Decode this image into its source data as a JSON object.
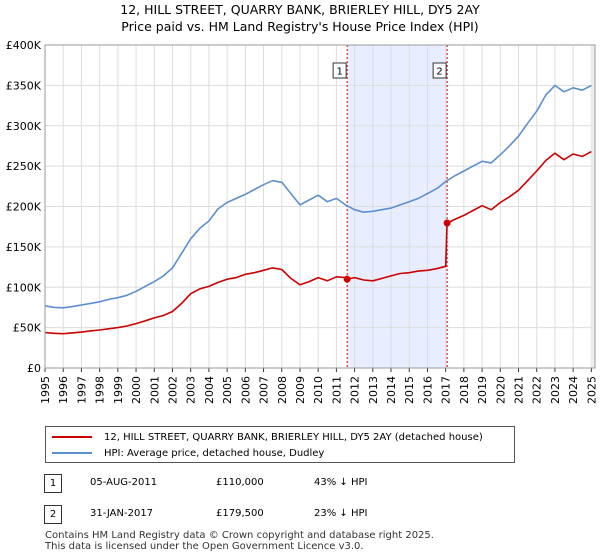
{
  "title_line1": "12, HILL STREET, QUARRY BANK, BRIERLEY HILL, DY5 2AY",
  "title_line2": "Price paid vs. HM Land Registry's House Price Index (HPI)",
  "colors": {
    "property": "#cc0000",
    "hpi": "#5b8fd0",
    "shade": "#e8eeff",
    "marker_line": "#cc0000"
  },
  "chart_data": {
    "type": "line",
    "xlim": [
      1995.0,
      2025.2
    ],
    "ylim": [
      0,
      400000
    ],
    "y_ticks": [
      0,
      50000,
      100000,
      150000,
      200000,
      250000,
      300000,
      350000,
      400000
    ],
    "y_tick_labels": [
      "£0",
      "£50K",
      "£100K",
      "£150K",
      "£200K",
      "£250K",
      "£300K",
      "£350K",
      "£400K"
    ],
    "x_ticks": [
      1995,
      1996,
      1997,
      1998,
      1999,
      2000,
      2001,
      2002,
      2003,
      2004,
      2005,
      2006,
      2007,
      2008,
      2009,
      2010,
      2011,
      2012,
      2013,
      2014,
      2015,
      2016,
      2017,
      2018,
      2019,
      2020,
      2021,
      2022,
      2023,
      2024,
      2025
    ],
    "x_tick_labels": [
      "1995",
      "1996",
      "1997",
      "1998",
      "1999",
      "2000",
      "2001",
      "2002",
      "2003",
      "2004",
      "2005",
      "2006",
      "2007",
      "2008",
      "2009",
      "2010",
      "2011",
      "2012",
      "2013",
      "2014",
      "2015",
      "2016",
      "2017",
      "2018",
      "2019",
      "2020",
      "2021",
      "2022",
      "2023",
      "2024",
      "2025"
    ],
    "shaded_region": [
      2011.59,
      2017.08
    ],
    "sale_markers": [
      {
        "label": "1",
        "x": 2011.59,
        "y": 110000
      },
      {
        "label": "2",
        "x": 2017.08,
        "y": 179500
      }
    ],
    "series": [
      {
        "name": "12, HILL STREET, QUARRY BANK, BRIERLEY HILL, DY5 2AY (detached house)",
        "x": [
          1995.0,
          1995.5,
          1996.0,
          1996.5,
          1997.0,
          1997.5,
          1998.0,
          1998.5,
          1999.0,
          1999.5,
          2000.0,
          2000.5,
          2001.0,
          2001.5,
          2002.0,
          2002.5,
          2003.0,
          2003.5,
          2004.0,
          2004.5,
          2005.0,
          2005.5,
          2006.0,
          2006.5,
          2007.0,
          2007.5,
          2008.0,
          2008.5,
          2009.0,
          2009.5,
          2010.0,
          2010.5,
          2011.0,
          2011.5,
          2011.59,
          2012.0,
          2012.5,
          2013.0,
          2013.5,
          2014.0,
          2014.5,
          2015.0,
          2015.5,
          2016.0,
          2016.5,
          2017.0,
          2017.08,
          2017.5,
          2018.0,
          2018.5,
          2019.0,
          2019.5,
          2020.0,
          2020.5,
          2021.0,
          2021.5,
          2022.0,
          2022.5,
          2023.0,
          2023.5,
          2024.0,
          2024.5,
          2025.0
        ],
        "values": [
          44000,
          43000,
          42500,
          43500,
          44500,
          46000,
          47000,
          48500,
          50000,
          52000,
          55000,
          58500,
          62000,
          65000,
          70000,
          80000,
          92000,
          98000,
          101000,
          106000,
          110000,
          112000,
          116000,
          118000,
          121000,
          124000,
          122000,
          111000,
          103000,
          107000,
          112000,
          108000,
          113000,
          112000,
          110000,
          112000,
          109000,
          108000,
          111000,
          114000,
          117000,
          118000,
          120000,
          121000,
          123000,
          126000,
          179500,
          184000,
          189000,
          195000,
          201000,
          196000,
          205000,
          212000,
          220000,
          232000,
          244000,
          257000,
          266000,
          258000,
          265000,
          262000,
          268000
        ]
      },
      {
        "name": "HPI: Average price, detached house, Dudley",
        "x": [
          1995.0,
          1995.5,
          1996.0,
          1996.5,
          1997.0,
          1997.5,
          1998.0,
          1998.5,
          1999.0,
          1999.5,
          2000.0,
          2000.5,
          2001.0,
          2001.5,
          2002.0,
          2002.5,
          2003.0,
          2003.5,
          2004.0,
          2004.5,
          2005.0,
          2005.5,
          2006.0,
          2006.5,
          2007.0,
          2007.5,
          2008.0,
          2008.5,
          2009.0,
          2009.5,
          2010.0,
          2010.5,
          2011.0,
          2011.5,
          2012.0,
          2012.5,
          2013.0,
          2013.5,
          2014.0,
          2014.5,
          2015.0,
          2015.5,
          2016.0,
          2016.5,
          2017.0,
          2017.5,
          2018.0,
          2018.5,
          2019.0,
          2019.5,
          2020.0,
          2020.5,
          2021.0,
          2021.5,
          2022.0,
          2022.5,
          2023.0,
          2023.5,
          2024.0,
          2024.5,
          2025.0
        ],
        "values": [
          77000,
          75000,
          74500,
          76000,
          78000,
          80000,
          82000,
          85000,
          87000,
          90000,
          95000,
          101000,
          107000,
          114000,
          124000,
          142000,
          160000,
          173000,
          182000,
          197000,
          205000,
          210000,
          215000,
          221000,
          227000,
          232000,
          230000,
          216000,
          202000,
          208000,
          214000,
          206000,
          210000,
          202000,
          196000,
          193000,
          194000,
          196000,
          198000,
          202000,
          206000,
          210000,
          216000,
          222000,
          231000,
          238000,
          244000,
          250000,
          256000,
          254000,
          264000,
          275000,
          287000,
          303000,
          318000,
          338000,
          350000,
          342000,
          347000,
          344000,
          350000
        ]
      }
    ]
  },
  "legend": {
    "property_label": "12, HILL STREET, QUARRY BANK, BRIERLEY HILL, DY5 2AY (detached house)",
    "hpi_label": "HPI: Average price, detached house, Dudley"
  },
  "transactions": [
    {
      "num": "1",
      "date": "05-AUG-2011",
      "price": "£110,000",
      "hpi": "43% ↓ HPI"
    },
    {
      "num": "2",
      "date": "31-JAN-2017",
      "price": "£179,500",
      "hpi": "23% ↓ HPI"
    }
  ],
  "footer_line1": "Contains HM Land Registry data © Crown copyright and database right 2025.",
  "footer_line2": "This data is licensed under the Open Government Licence v3.0."
}
